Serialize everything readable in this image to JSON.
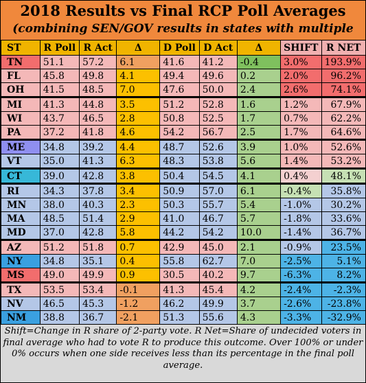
{
  "title": "2018 Results vs Final RCP Poll Averages",
  "subtitle": "(combining SEN/GOV results in states with multiple races)",
  "chart_data": {
    "type": "table",
    "columns": [
      "ST",
      "R Poll",
      "R Act",
      "Δ",
      "D Poll",
      "D Act",
      "Δ",
      "SHIFT",
      "R NET"
    ],
    "rows": [
      {
        "st": "TN",
        "rpoll": "51.1",
        "ract": "57.2",
        "rd": "6.1",
        "dpoll": "41.6",
        "dact": "41.2",
        "dd": "-0.4",
        "shift": "3.0%",
        "rnet": "193.9%",
        "group": "r",
        "dcolor": "#f0a060",
        "shiftcolor": "#f26d6d",
        "rnetcolor": "#f26d6d",
        "ddcolor": "#7fc05e"
      },
      {
        "st": "FL",
        "rpoll": "45.8",
        "ract": "49.8",
        "rd": "4.1",
        "dpoll": "49.4",
        "dact": "49.6",
        "dd": "0.2",
        "shift": "2.0%",
        "rnet": "96.2%",
        "group": "r",
        "dcolor": "#fcc000",
        "shiftcolor": "#f26d6d",
        "rnetcolor": "#f26d6d",
        "ddcolor": "#a9d08e"
      },
      {
        "st": "OH",
        "rpoll": "41.5",
        "ract": "48.5",
        "rd": "7.0",
        "dpoll": "47.6",
        "dact": "50.0",
        "dd": "2.4",
        "shift": "2.6%",
        "rnet": "74.1%",
        "group": "r",
        "dcolor": "#fcc000",
        "shiftcolor": "#f26d6d",
        "rnetcolor": "#f26d6d",
        "ddcolor": "#a9d08e"
      },
      {
        "st": "MI",
        "rpoll": "41.3",
        "ract": "44.8",
        "rd": "3.5",
        "dpoll": "51.2",
        "dact": "52.8",
        "dd": "1.6",
        "shift": "1.2%",
        "rnet": "67.9%",
        "group": "p",
        "dcolor": "#fcc000",
        "shiftcolor": "#f4b8b8",
        "rnetcolor": "#f4b8b8",
        "ddcolor": "#a9d08e",
        "gap": true
      },
      {
        "st": "WI",
        "rpoll": "43.7",
        "ract": "46.5",
        "rd": "2.8",
        "dpoll": "50.8",
        "dact": "52.5",
        "dd": "1.7",
        "shift": "0.7%",
        "rnet": "62.2%",
        "group": "p",
        "dcolor": "#fcc000",
        "shiftcolor": "#f4b8b8",
        "rnetcolor": "#f4b8b8",
        "ddcolor": "#a9d08e"
      },
      {
        "st": "PA",
        "rpoll": "37.2",
        "ract": "41.8",
        "rd": "4.6",
        "dpoll": "54.2",
        "dact": "56.7",
        "dd": "2.5",
        "shift": "1.7%",
        "rnet": "64.6%",
        "group": "p",
        "dcolor": "#fcc000",
        "shiftcolor": "#f4b8b8",
        "rnetcolor": "#f4b8b8",
        "ddcolor": "#a9d08e"
      },
      {
        "st": "ME",
        "rpoll": "34.8",
        "ract": "39.2",
        "rd": "4.4",
        "dpoll": "48.7",
        "dact": "52.6",
        "dd": "3.9",
        "shift": "1.0%",
        "rnet": "52.6%",
        "group": "pu",
        "dcolor": "#fcc000",
        "shiftcolor": "#f4b8b8",
        "rnetcolor": "#f4b8b8",
        "ddcolor": "#a9d08e",
        "gap": true
      },
      {
        "st": "VT",
        "rpoll": "35.0",
        "ract": "41.3",
        "rd": "6.3",
        "dpoll": "48.3",
        "dact": "53.8",
        "dd": "5.6",
        "shift": "1.4%",
        "rnet": "53.2%",
        "group": "lb",
        "dcolor": "#fcc000",
        "shiftcolor": "#f4b8b8",
        "rnetcolor": "#f4b8b8",
        "ddcolor": "#a9d08e"
      },
      {
        "st": "CT",
        "rpoll": "39.0",
        "ract": "42.8",
        "rd": "3.8",
        "dpoll": "50.4",
        "dact": "54.5",
        "dd": "4.1",
        "shift": "0.4%",
        "rnet": "48.1%",
        "group": "cy",
        "dcolor": "#fcc000",
        "shiftcolor": "#f4d0d0",
        "rnetcolor": "#c6e0b4",
        "ddcolor": "#a9d08e",
        "gap": true
      },
      {
        "st": "RI",
        "rpoll": "34.3",
        "ract": "37.8",
        "rd": "3.4",
        "dpoll": "50.9",
        "dact": "57.0",
        "dd": "6.1",
        "shift": "-0.4%",
        "rnet": "35.8%",
        "group": "b",
        "dcolor": "#fcc000",
        "shiftcolor": "#c6e0b4",
        "rnetcolor": "#b4c7e7",
        "ddcolor": "#a9d08e",
        "gap": true
      },
      {
        "st": "MN",
        "rpoll": "38.0",
        "ract": "40.3",
        "rd": "2.3",
        "dpoll": "50.3",
        "dact": "55.7",
        "dd": "5.4",
        "shift": "-1.0%",
        "rnet": "30.2%",
        "group": "b",
        "dcolor": "#fcc000",
        "shiftcolor": "#b4c7e7",
        "rnetcolor": "#b4c7e7",
        "ddcolor": "#a9d08e"
      },
      {
        "st": "MA",
        "rpoll": "48.5",
        "ract": "51.4",
        "rd": "2.9",
        "dpoll": "41.0",
        "dact": "46.7",
        "dd": "5.7",
        "shift": "-1.8%",
        "rnet": "33.6%",
        "group": "b",
        "dcolor": "#fcc000",
        "shiftcolor": "#b4c7e7",
        "rnetcolor": "#b4c7e7",
        "ddcolor": "#a9d08e"
      },
      {
        "st": "MD",
        "rpoll": "37.0",
        "ract": "42.8",
        "rd": "5.8",
        "dpoll": "44.2",
        "dact": "54.2",
        "dd": "10.0",
        "shift": "-1.4%",
        "rnet": "36.7%",
        "group": "b",
        "dcolor": "#fcc000",
        "shiftcolor": "#b4c7e7",
        "rnetcolor": "#b4c7e7",
        "ddcolor": "#a9d08e"
      },
      {
        "st": "AZ",
        "rpoll": "51.2",
        "ract": "51.8",
        "rd": "0.7",
        "dpoll": "42.9",
        "dact": "45.0",
        "dd": "2.1",
        "shift": "-0.9%",
        "rnet": "23.5%",
        "group": "pr",
        "dcolor": "#fcc000",
        "shiftcolor": "#b4c7e7",
        "rnetcolor": "#4db3e6",
        "ddcolor": "#a9d08e",
        "gap": true
      },
      {
        "st": "NY",
        "rpoll": "34.8",
        "ract": "35.1",
        "rd": "0.4",
        "dpoll": "55.8",
        "dact": "62.7",
        "dd": "7.0",
        "shift": "-2.5%",
        "rnet": "5.1%",
        "group": "b",
        "dcolor": "#fcc000",
        "shiftcolor": "#4db3e6",
        "rnetcolor": "#4db3e6",
        "ddcolor": "#a9d08e"
      },
      {
        "st": "MS",
        "rpoll": "49.0",
        "ract": "49.9",
        "rd": "0.9",
        "dpoll": "30.5",
        "dact": "40.2",
        "dd": "9.7",
        "shift": "-6.3%",
        "rnet": "8.2%",
        "group": "r",
        "dcolor": "#fcc000",
        "shiftcolor": "#4db3e6",
        "rnetcolor": "#4db3e6",
        "ddcolor": "#a9d08e"
      },
      {
        "st": "TX",
        "rpoll": "53.5",
        "ract": "53.4",
        "rd": "-0.1",
        "dpoll": "41.3",
        "dact": "45.4",
        "dd": "4.2",
        "shift": "-2.4%",
        "rnet": "-2.3%",
        "group": "p",
        "dcolor": "#f0a060",
        "shiftcolor": "#4db3e6",
        "rnetcolor": "#4db3e6",
        "ddcolor": "#a9d08e",
        "gap": true
      },
      {
        "st": "NV",
        "rpoll": "46.5",
        "ract": "45.3",
        "rd": "-1.2",
        "dpoll": "46.2",
        "dact": "49.9",
        "dd": "3.7",
        "shift": "-2.6%",
        "rnet": "-23.8%",
        "group": "b",
        "dcolor": "#f0a060",
        "shiftcolor": "#4db3e6",
        "rnetcolor": "#4db3e6",
        "ddcolor": "#a9d08e"
      },
      {
        "st": "NM",
        "rpoll": "38.8",
        "ract": "36.7",
        "rd": "-2.1",
        "dpoll": "51.3",
        "dact": "55.6",
        "dd": "4.3",
        "shift": "-3.3%",
        "rnet": "-32.9%",
        "group": "b",
        "dcolor": "#f0a060",
        "shiftcolor": "#4db3e6",
        "rnetcolor": "#4db3e6",
        "ddcolor": "#a9d08e"
      }
    ]
  },
  "footnote": "Shift=Change in R share of 2-party vote. R Net=Share of undecided voters in final average who had to vote R to produce this outcome. Over 100% or under 0% occurs when one side receives less than its percentage in the final poll average."
}
